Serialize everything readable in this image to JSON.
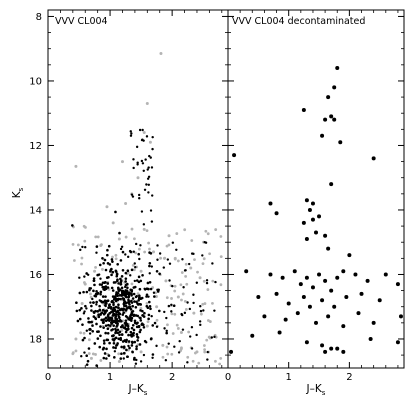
{
  "chart_data": [
    {
      "type": "scatter",
      "panel": "left",
      "title": "VVV CL004",
      "xlabel": "J–K",
      "xlabel_sub": "s",
      "ylabel": "K",
      "ylabel_sub": "s",
      "xlim": [
        0,
        2.9
      ],
      "ylim": [
        18.9,
        7.8
      ],
      "y_inverted": true,
      "x_ticks": [
        0,
        1,
        2
      ],
      "y_ticks": [
        8,
        10,
        12,
        14,
        16,
        18
      ],
      "colors": {
        "field": "#b4b4b4",
        "member": "#000000"
      },
      "series": [
        {
          "name": "",
          "color": "#b4b4b4",
          "points": [
            [
              0.45,
              12.65
            ],
            [
              1.82,
              9.15
            ],
            [
              1.6,
              10.7
            ],
            [
              1.55,
              11.6
            ],
            [
              1.65,
              11.9
            ],
            [
              1.2,
              12.5
            ],
            [
              1.45,
              13.0
            ],
            [
              1.35,
              13.5
            ],
            [
              1.25,
              13.8
            ],
            [
              0.95,
              13.9
            ],
            [
              1.05,
              14.4
            ],
            [
              1.55,
              14.6
            ],
            [
              1.15,
              14.9
            ],
            [
              1.95,
              14.8
            ],
            [
              0.85,
              15.1
            ],
            [
              1.7,
              15.3
            ],
            [
              2.05,
              15.5
            ],
            [
              0.75,
              15.9
            ],
            [
              1.5,
              15.9
            ],
            [
              2.3,
              15.8
            ],
            [
              0.6,
              16.3
            ],
            [
              1.9,
              16.2
            ],
            [
              2.45,
              16.1
            ],
            [
              1.3,
              16.6
            ],
            [
              0.55,
              16.9
            ],
            [
              2.1,
              16.7
            ],
            [
              1.75,
              17.0
            ],
            [
              0.8,
              17.3
            ],
            [
              2.35,
              17.2
            ],
            [
              1.0,
              17.6
            ],
            [
              1.6,
              17.6
            ],
            [
              2.15,
              17.8
            ],
            [
              0.45,
              18.0
            ],
            [
              1.3,
              18.1
            ],
            [
              0.9,
              18.3
            ],
            [
              1.85,
              18.2
            ],
            [
              1.5,
              18.4
            ],
            [
              0.7,
              18.6
            ],
            [
              2.4,
              18.4
            ],
            [
              1.15,
              18.7
            ]
          ]
        }
      ]
    },
    {
      "type": "scatter",
      "panel": "right",
      "title": "VVV CL004 decontaminated",
      "xlabel": "J–K",
      "xlabel_sub": "s",
      "xlim": [
        0,
        2.9
      ],
      "ylim": [
        18.9,
        7.8
      ],
      "y_inverted": true,
      "x_ticks": [
        0,
        1,
        2
      ],
      "y_ticks": [
        8,
        10,
        12,
        14,
        16,
        18
      ],
      "series": [
        {
          "name": "",
          "color": "#000000",
          "points": [
            [
              1.8,
              9.6
            ],
            [
              1.75,
              10.2
            ],
            [
              1.65,
              10.5
            ],
            [
              1.25,
              10.9
            ],
            [
              1.6,
              11.2
            ],
            [
              1.7,
              11.1
            ],
            [
              1.75,
              11.2
            ],
            [
              1.55,
              11.7
            ],
            [
              1.85,
              11.9
            ],
            [
              2.4,
              12.4
            ],
            [
              0.1,
              12.3
            ],
            [
              1.7,
              13.2
            ],
            [
              0.7,
              13.8
            ],
            [
              0.8,
              14.1
            ],
            [
              1.3,
              13.7
            ],
            [
              1.35,
              14.0
            ],
            [
              1.4,
              14.3
            ],
            [
              1.25,
              14.4
            ],
            [
              1.45,
              14.7
            ],
            [
              1.3,
              14.9
            ],
            [
              1.5,
              14.2
            ],
            [
              1.4,
              13.8
            ],
            [
              1.6,
              14.8
            ],
            [
              1.65,
              15.2
            ],
            [
              2.0,
              15.4
            ],
            [
              0.3,
              15.9
            ],
            [
              0.7,
              16.0
            ],
            [
              0.9,
              16.1
            ],
            [
              1.1,
              15.9
            ],
            [
              1.2,
              16.3
            ],
            [
              1.3,
              16.1
            ],
            [
              1.4,
              16.4
            ],
            [
              1.5,
              16.0
            ],
            [
              1.6,
              16.2
            ],
            [
              1.7,
              16.5
            ],
            [
              1.8,
              16.1
            ],
            [
              1.9,
              15.9
            ],
            [
              2.1,
              16.0
            ],
            [
              2.3,
              16.2
            ],
            [
              2.6,
              16.0
            ],
            [
              2.8,
              16.3
            ],
            [
              0.5,
              16.7
            ],
            [
              0.8,
              16.6
            ],
            [
              1.0,
              16.9
            ],
            [
              1.25,
              16.7
            ],
            [
              1.35,
              17.0
            ],
            [
              1.55,
              16.8
            ],
            [
              1.75,
              17.0
            ],
            [
              1.95,
              16.7
            ],
            [
              2.2,
              16.6
            ],
            [
              2.5,
              16.8
            ],
            [
              0.6,
              17.3
            ],
            [
              0.95,
              17.4
            ],
            [
              1.15,
              17.2
            ],
            [
              1.45,
              17.5
            ],
            [
              1.65,
              17.3
            ],
            [
              1.9,
              17.6
            ],
            [
              2.15,
              17.2
            ],
            [
              2.4,
              17.5
            ],
            [
              2.85,
              17.3
            ],
            [
              0.4,
              17.9
            ],
            [
              0.85,
              17.8
            ],
            [
              1.3,
              18.1
            ],
            [
              1.55,
              18.2
            ],
            [
              1.7,
              18.3
            ],
            [
              1.9,
              18.4
            ],
            [
              1.6,
              18.4
            ],
            [
              1.8,
              18.3
            ],
            [
              2.35,
              18.0
            ],
            [
              2.8,
              18.1
            ],
            [
              0.05,
              18.4
            ]
          ]
        }
      ]
    }
  ]
}
